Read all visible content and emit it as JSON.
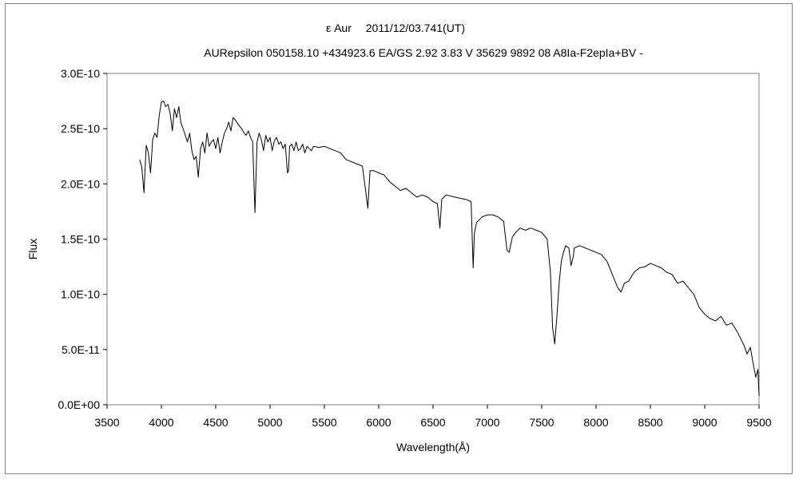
{
  "chart_data": {
    "type": "line",
    "title": "ε Aur　 2011/12/03.741(UT)",
    "subtitle": "AURepsilon 050158.10 +434923.6 EA/GS 2.92 3.83 V 35629 9892 08 A8Ia-F2epIa+BV -",
    "xlabel": "Wavelength(Å)",
    "ylabel": "Flux",
    "xlim": [
      3500,
      9500
    ],
    "ylim": [
      0,
      3e-10
    ],
    "x_ticks": [
      3500,
      4000,
      4500,
      5000,
      5500,
      6000,
      6500,
      7000,
      7500,
      8000,
      8500,
      9000,
      9500
    ],
    "x_tick_labels": [
      "3500",
      "4000",
      "4500",
      "5000",
      "5500",
      "6000",
      "6500",
      "7000",
      "7500",
      "8000",
      "8500",
      "9000",
      "9500"
    ],
    "y_ticks": [
      0,
      5e-11,
      1e-10,
      1.5e-10,
      2e-10,
      2.5e-10,
      3e-10
    ],
    "y_tick_labels": [
      "0.0E+00",
      "5.0E-11",
      "1.0E-10",
      "1.5E-10",
      "2.0E-10",
      "2.5E-10",
      "3.0E-10"
    ],
    "grid": false,
    "legend": "none",
    "line_color": "#000000",
    "series": [
      {
        "x": [
          3800,
          3820,
          3840,
          3860,
          3880,
          3900,
          3920,
          3940,
          3960,
          3980,
          4000,
          4020,
          4040,
          4060,
          4080,
          4101,
          4120,
          4140,
          4160,
          4180,
          4200,
          4220,
          4240,
          4260,
          4280,
          4300,
          4320,
          4340,
          4360,
          4380,
          4400,
          4420,
          4440,
          4460,
          4480,
          4500,
          4520,
          4540,
          4560,
          4580,
          4600,
          4620,
          4640,
          4660,
          4680,
          4700,
          4720,
          4740,
          4760,
          4780,
          4800,
          4820,
          4840,
          4861,
          4880,
          4900,
          4920,
          4940,
          4960,
          4980,
          5000,
          5020,
          5040,
          5060,
          5080,
          5100,
          5120,
          5140,
          5160,
          5170,
          5180,
          5200,
          5220,
          5240,
          5260,
          5280,
          5300,
          5320,
          5340,
          5360,
          5380,
          5400,
          5450,
          5500,
          5550,
          5600,
          5650,
          5700,
          5750,
          5800,
          5850,
          5890,
          5900,
          5920,
          5950,
          6000,
          6050,
          6100,
          6150,
          6200,
          6250,
          6300,
          6350,
          6400,
          6450,
          6500,
          6540,
          6563,
          6580,
          6620,
          6700,
          6800,
          6850,
          6869,
          6880,
          6900,
          6950,
          7000,
          7050,
          7100,
          7150,
          7180,
          7200,
          7230,
          7260,
          7300,
          7350,
          7400,
          7450,
          7500,
          7550,
          7580,
          7600,
          7620,
          7640,
          7660,
          7680,
          7700,
          7720,
          7750,
          7770,
          7790,
          7800,
          7850,
          7900,
          7950,
          8000,
          8050,
          8100,
          8150,
          8200,
          8230,
          8260,
          8300,
          8350,
          8400,
          8450,
          8500,
          8550,
          8600,
          8650,
          8700,
          8750,
          8800,
          8850,
          8900,
          8950,
          9000,
          9050,
          9100,
          9150,
          9200,
          9250,
          9300,
          9330,
          9360,
          9390,
          9420,
          9450,
          9470,
          9490,
          9500
        ],
        "y": [
          2.22e-10,
          2.15e-10,
          1.92e-10,
          2.35e-10,
          2.28e-10,
          2.1e-10,
          2.4e-10,
          2.46e-10,
          2.42e-10,
          2.62e-10,
          2.74e-10,
          2.75e-10,
          2.7e-10,
          2.72e-10,
          2.64e-10,
          2.48e-10,
          2.68e-10,
          2.6e-10,
          2.7e-10,
          2.55e-10,
          2.5e-10,
          2.44e-10,
          2.38e-10,
          2.46e-10,
          2.3e-10,
          2.22e-10,
          2.25e-10,
          2.06e-10,
          2.32e-10,
          2.38e-10,
          2.28e-10,
          2.46e-10,
          2.34e-10,
          2.38e-10,
          2.4e-10,
          2.32e-10,
          2.42e-10,
          2.28e-10,
          2.38e-10,
          2.46e-10,
          2.5e-10,
          2.56e-10,
          2.48e-10,
          2.6e-10,
          2.58e-10,
          2.55e-10,
          2.52e-10,
          2.5e-10,
          2.46e-10,
          2.44e-10,
          2.48e-10,
          2.42e-10,
          2.38e-10,
          1.74e-10,
          2.38e-10,
          2.46e-10,
          2.4e-10,
          2.3e-10,
          2.44e-10,
          2.38e-10,
          2.42e-10,
          2.3e-10,
          2.39e-10,
          2.42e-10,
          2.36e-10,
          2.38e-10,
          2.32e-10,
          2.36e-10,
          2.1e-10,
          2.12e-10,
          2.34e-10,
          2.36e-10,
          2.3e-10,
          2.38e-10,
          2.3e-10,
          2.32e-10,
          2.36e-10,
          2.28e-10,
          2.34e-10,
          2.32e-10,
          2.3e-10,
          2.34e-10,
          2.33e-10,
          2.34e-10,
          2.32e-10,
          2.3e-10,
          2.28e-10,
          2.22e-10,
          2.2e-10,
          2.18e-10,
          2.16e-10,
          1.86e-10,
          1.78e-10,
          2.12e-10,
          2.12e-10,
          2.1e-10,
          2.08e-10,
          2.02e-10,
          1.98e-10,
          1.94e-10,
          1.96e-10,
          1.92e-10,
          1.88e-10,
          1.9e-10,
          1.88e-10,
          1.84e-10,
          1.82e-10,
          1.6e-10,
          1.86e-10,
          1.9e-10,
          1.88e-10,
          1.86e-10,
          1.84e-10,
          1.24e-10,
          1.55e-10,
          1.65e-10,
          1.7e-10,
          1.72e-10,
          1.72e-10,
          1.7e-10,
          1.66e-10,
          1.4e-10,
          1.38e-10,
          1.52e-10,
          1.56e-10,
          1.6e-10,
          1.58e-10,
          1.6e-10,
          1.58e-10,
          1.56e-10,
          1.5e-10,
          1.2e-10,
          7e-11,
          5.5e-11,
          8e-11,
          1.1e-10,
          1.3e-10,
          1.38e-10,
          1.44e-10,
          1.42e-10,
          1.26e-10,
          1.34e-10,
          1.42e-10,
          1.44e-10,
          1.42e-10,
          1.4e-10,
          1.38e-10,
          1.36e-10,
          1.3e-10,
          1.18e-10,
          1.06e-10,
          1.02e-10,
          1.1e-10,
          1.12e-10,
          1.2e-10,
          1.24e-10,
          1.25e-10,
          1.28e-10,
          1.26e-10,
          1.24e-10,
          1.2e-10,
          1.18e-10,
          1.1e-10,
          1.12e-10,
          1.06e-10,
          1e-10,
          8.8e-11,
          8.2e-11,
          7.8e-11,
          7.6e-11,
          8e-11,
          7.2e-11,
          7.4e-11,
          6.6e-11,
          6e-11,
          5.4e-11,
          4.6e-11,
          5.2e-11,
          3.5e-11,
          2.5e-11,
          3.2e-11,
          8e-12
        ]
      }
    ]
  }
}
